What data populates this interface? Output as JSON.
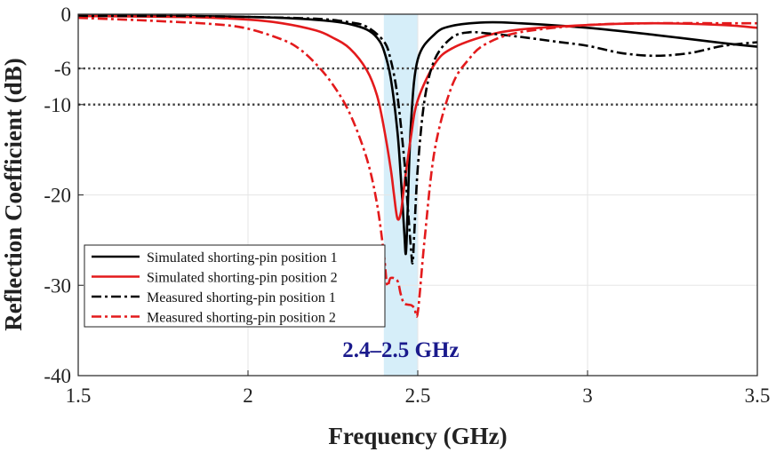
{
  "chart_data": {
    "type": "line",
    "title": "",
    "xlabel": "Frequency (GHz)",
    "ylabel": "Reflection Coefficient (dB)",
    "xlim": [
      1.5,
      3.5
    ],
    "ylim": [
      -40,
      0
    ],
    "xticks": [
      1.5,
      2,
      2.5,
      3,
      3.5
    ],
    "xtick_labels": [
      "1.5",
      "2",
      "2.5",
      "3",
      "3.5"
    ],
    "yticks": [
      0,
      -6,
      -10,
      -20,
      -30,
      -40
    ],
    "ytick_labels": [
      "0",
      "-6",
      "-10",
      "-20",
      "-30",
      "-40"
    ],
    "grid": true,
    "reference_lines": [
      -6,
      -10
    ],
    "band": {
      "x0": 2.4,
      "x1": 2.5,
      "label": "2.4–2.5 GHz",
      "fill": "#d6eef9",
      "label_color": "#1a1a8c"
    },
    "legend_position": "bottom-left",
    "series": [
      {
        "name": "Simulated shorting-pin position 1",
        "color": "#000000",
        "dash": "solid",
        "x": [
          1.5,
          1.8,
          2.0,
          2.15,
          2.25,
          2.3,
          2.35,
          2.38,
          2.4,
          2.42,
          2.44,
          2.45,
          2.46,
          2.465,
          2.47,
          2.48,
          2.5,
          2.55,
          2.6,
          2.7,
          2.8,
          3.0,
          3.2,
          3.4,
          3.5
        ],
        "y": [
          -0.2,
          -0.2,
          -0.3,
          -0.5,
          -0.8,
          -1.1,
          -1.7,
          -2.6,
          -4.0,
          -7.0,
          -13.0,
          -18.0,
          -24.0,
          -26.5,
          -22.0,
          -12.0,
          -5.0,
          -2.2,
          -1.3,
          -0.9,
          -1.0,
          -1.5,
          -2.3,
          -3.2,
          -3.6
        ]
      },
      {
        "name": "Simulated shorting-pin position 2",
        "color": "#e31a1c",
        "dash": "solid",
        "x": [
          1.5,
          1.8,
          2.0,
          2.1,
          2.2,
          2.25,
          2.3,
          2.35,
          2.38,
          2.4,
          2.42,
          2.43,
          2.44,
          2.45,
          2.46,
          2.48,
          2.5,
          2.55,
          2.6,
          2.7,
          2.8,
          3.0,
          3.2,
          3.4,
          3.5
        ],
        "y": [
          -0.2,
          -0.3,
          -0.6,
          -1.0,
          -1.8,
          -2.6,
          -3.8,
          -6.2,
          -9.0,
          -12.5,
          -17.0,
          -20.0,
          -22.6,
          -22.0,
          -19.0,
          -13.5,
          -9.5,
          -5.5,
          -3.8,
          -2.4,
          -1.7,
          -1.2,
          -1.0,
          -1.2,
          -1.5
        ]
      },
      {
        "name": "Measured shorting-pin position 1",
        "color": "#000000",
        "dash": "dashdot",
        "x": [
          1.5,
          1.8,
          2.0,
          2.2,
          2.3,
          2.35,
          2.4,
          2.42,
          2.44,
          2.46,
          2.47,
          2.48,
          2.485,
          2.49,
          2.5,
          2.52,
          2.55,
          2.6,
          2.65,
          2.7,
          2.8,
          2.9,
          3.0,
          3.1,
          3.2,
          3.3,
          3.4,
          3.5
        ],
        "y": [
          -0.2,
          -0.2,
          -0.3,
          -0.5,
          -0.9,
          -1.4,
          -3.0,
          -5.0,
          -9.0,
          -16.0,
          -21.0,
          -26.0,
          -27.5,
          -24.0,
          -17.0,
          -9.5,
          -5.0,
          -2.6,
          -2.0,
          -2.1,
          -2.5,
          -3.0,
          -3.5,
          -4.3,
          -4.6,
          -4.3,
          -3.5,
          -3.1
        ]
      },
      {
        "name": "Measured shorting-pin position 2",
        "color": "#e31a1c",
        "dash": "dashdot",
        "x": [
          1.5,
          1.7,
          1.9,
          2.0,
          2.1,
          2.15,
          2.2,
          2.25,
          2.3,
          2.35,
          2.38,
          2.4,
          2.41,
          2.42,
          2.44,
          2.45,
          2.46,
          2.48,
          2.49,
          2.5,
          2.52,
          2.55,
          2.6,
          2.65,
          2.7,
          2.8,
          3.0,
          3.2,
          3.4,
          3.5
        ],
        "y": [
          -0.4,
          -0.7,
          -1.1,
          -1.6,
          -2.8,
          -3.8,
          -5.5,
          -7.8,
          -11.0,
          -16.0,
          -21.0,
          -26.5,
          -30.0,
          -29.2,
          -29.5,
          -31.0,
          -32.0,
          -32.2,
          -32.5,
          -33.0,
          -25.0,
          -15.0,
          -8.0,
          -5.0,
          -3.3,
          -2.0,
          -1.2,
          -1.0,
          -1.0,
          -1.0
        ]
      }
    ]
  }
}
